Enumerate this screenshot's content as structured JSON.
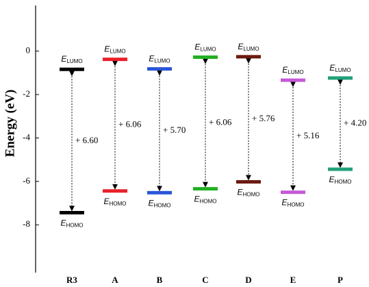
{
  "chart_data": {
    "type": "energy_levels",
    "y_label": "Energy (eV)",
    "categories": [
      "R3",
      "A",
      "B",
      "C",
      "D",
      "E",
      "P"
    ],
    "series": [
      {
        "name": "LUMO",
        "values": [
          -0.84,
          -0.38,
          -0.82,
          -0.28,
          -0.26,
          -1.34,
          -1.24
        ]
      },
      {
        "name": "HOMO",
        "values": [
          -7.44,
          -6.44,
          -6.52,
          -6.34,
          -6.02,
          -6.5,
          -5.44
        ]
      }
    ],
    "colors": [
      "#000000",
      "#e8202a",
      "#2a55d8",
      "#22b022",
      "#6b1a10",
      "#c45ad6",
      "#22a07a"
    ],
    "gap_labels": [
      "+ 6.60",
      "+ 6.06",
      "+ 5.70",
      "+ 6.06",
      "+ 5.76",
      "+ 5.16",
      "+ 4.20"
    ],
    "level_symbol": "E",
    "lumo_sub": "LUMO",
    "homo_sub": "HOMO",
    "ylim": [
      -10.2,
      2.1
    ],
    "yticks": [
      -8,
      -6,
      -4,
      -2,
      0
    ]
  }
}
